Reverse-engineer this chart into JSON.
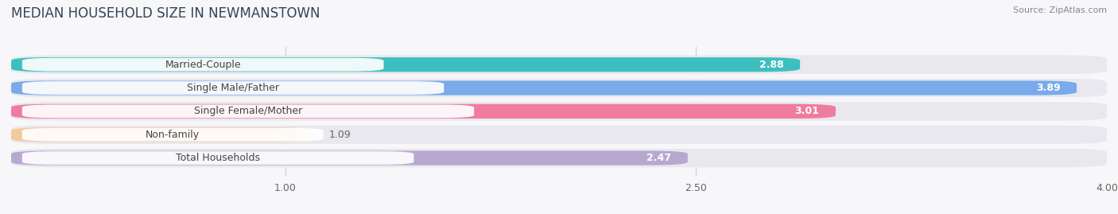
{
  "title": "MEDIAN HOUSEHOLD SIZE IN NEWMANSTOWN",
  "source": "Source: ZipAtlas.com",
  "categories": [
    "Married-Couple",
    "Single Male/Father",
    "Single Female/Mother",
    "Non-family",
    "Total Households"
  ],
  "values": [
    2.88,
    3.89,
    3.01,
    1.09,
    2.47
  ],
  "bar_colors": [
    "#3DBFBF",
    "#79AAEB",
    "#F07BA0",
    "#F5C99A",
    "#B8A8D0"
  ],
  "xlim_max": 4.0,
  "xticks": [
    1.0,
    2.5,
    4.0
  ],
  "xticklabels": [
    "1.00",
    "2.50",
    "4.00"
  ],
  "bar_height": 0.62,
  "bg_bar_color": "#e8e8ee",
  "background_color": "#f7f7fa",
  "label_bg_color": "#ffffff",
  "label_text_color": "#444444",
  "value_color_inside": "#ffffff",
  "value_color_outside": "#666666",
  "title_color": "#334455",
  "source_color": "#888888",
  "title_fontsize": 12,
  "label_fontsize": 9,
  "value_fontsize": 9,
  "source_fontsize": 8,
  "grid_color": "#ccccdd",
  "gap_color": "#ffffff"
}
